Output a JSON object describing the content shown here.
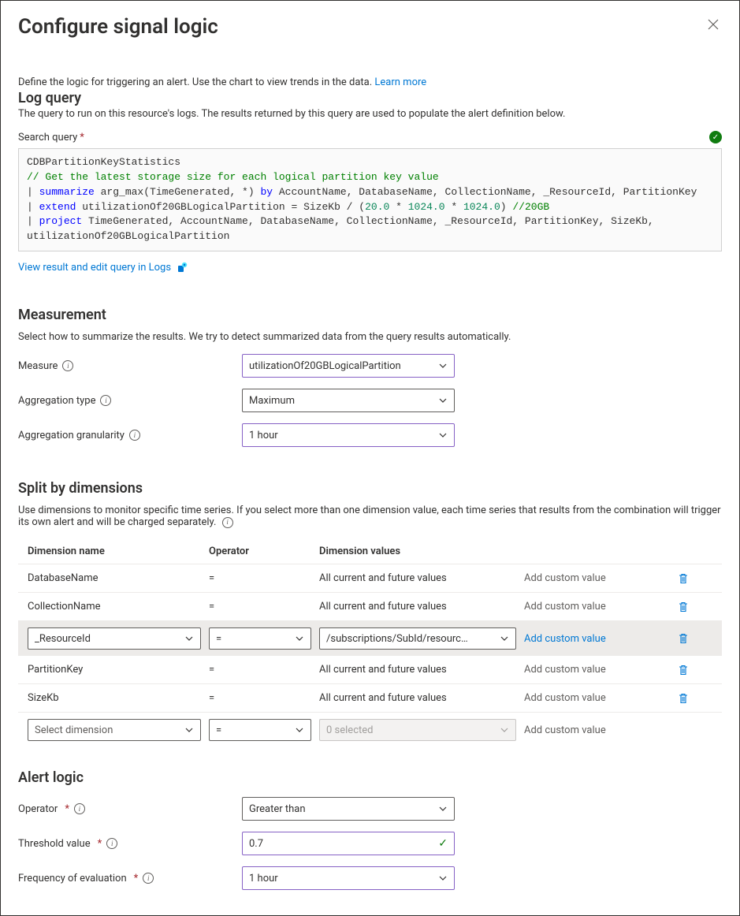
{
  "title": "Configure signal logic",
  "intro": {
    "text": "Define the logic for triggering an alert. Use the chart to view trends in the data.",
    "learn_more": "Learn more"
  },
  "log_query": {
    "heading": "Log query",
    "desc": "The query to run on this resource's logs. The results returned by this query are used to populate the alert definition below.",
    "label": "Search query",
    "code": {
      "l1": "CDBPartitionKeyStatistics",
      "l2": "// Get the latest storage size for each logical partition key value",
      "l3a": "| ",
      "l3kw": "summarize",
      "l3b": " arg_max(TimeGenerated, *) ",
      "l3kw2": "by",
      "l3c": " AccountName, DatabaseName, CollectionName, _ResourceId, PartitionKey",
      "l4a": "| ",
      "l4kw": "extend",
      "l4b": " utilizationOf20GBLogicalPartition = SizeKb / (",
      "l4n1": "20.0",
      "l4s1": " * ",
      "l4n2": "1024.0",
      "l4s2": " * ",
      "l4n3": "1024.0",
      "l4c": ") ",
      "l4cmt": "//20GB",
      "l5a": "| ",
      "l5kw": "project",
      "l5b": " TimeGenerated, AccountName, DatabaseName, CollectionName, _ResourceId, PartitionKey, SizeKb, utilizationOf20GBLogicalPartition"
    },
    "logs_link": "View result and edit query in Logs"
  },
  "measurement": {
    "heading": "Measurement",
    "desc": "Select how to summarize the results. We try to detect summarized data from the query results automatically.",
    "measure_label": "Measure",
    "measure_value": "utilizationOf20GBLogicalPartition",
    "agg_type_label": "Aggregation type",
    "agg_type_value": "Maximum",
    "agg_gran_label": "Aggregation granularity",
    "agg_gran_value": "1 hour"
  },
  "split": {
    "heading": "Split by dimensions",
    "desc": "Use dimensions to monitor specific time series. If you select more than one dimension value, each time series that results from the combination will trigger its own alert and will be charged separately.",
    "col_name": "Dimension name",
    "col_op": "Operator",
    "col_vals": "Dimension values",
    "rows": [
      {
        "name": "DatabaseName",
        "op": "=",
        "values": "All current and future values",
        "custom": "Add custom value",
        "linkish": false
      },
      {
        "name": "CollectionName",
        "op": "=",
        "values": "All current and future values",
        "custom": "Add custom value",
        "linkish": false
      },
      {
        "name": "_ResourceId",
        "op": "=",
        "values": "/subscriptions/SubId/resourc…",
        "custom": "Add custom value",
        "linkish": true,
        "editing": true
      },
      {
        "name": "PartitionKey",
        "op": "=",
        "values": "All current and future values",
        "custom": "Add custom value",
        "linkish": false
      },
      {
        "name": "SizeKb",
        "op": "=",
        "values": "All current and future values",
        "custom": "Add custom value",
        "linkish": false
      }
    ],
    "add_row": {
      "name_placeholder": "Select dimension",
      "op": "=",
      "values_placeholder": "0 selected",
      "custom": "Add custom value"
    }
  },
  "alert": {
    "heading": "Alert logic",
    "operator_label": "Operator",
    "operator_value": "Greater than",
    "threshold_label": "Threshold value",
    "threshold_value": "0.7",
    "freq_label": "Frequency of evaluation",
    "freq_value": "1 hour"
  },
  "colors": {
    "purple_border": "#8661c5",
    "link": "#0078d4",
    "green": "#107c10"
  }
}
